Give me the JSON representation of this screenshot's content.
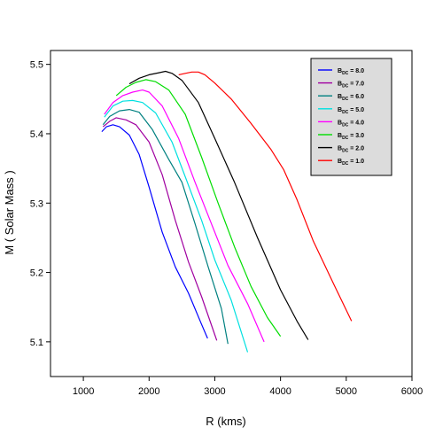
{
  "chart_data": {
    "type": "line",
    "xlabel": "R (kms)",
    "ylabel": "M ( Solar Mass )",
    "xlim": [
      500,
      6000
    ],
    "ylim": [
      5.05,
      5.52
    ],
    "x_ticks": [
      {
        "value": 1000,
        "label": "1000"
      },
      {
        "value": 2000,
        "label": "2000"
      },
      {
        "value": 3000,
        "label": "3000"
      },
      {
        "value": 4000,
        "label": "4000"
      },
      {
        "value": 5000,
        "label": "5000"
      },
      {
        "value": 6000,
        "label": "6000"
      }
    ],
    "y_ticks": [
      {
        "value": 5.1,
        "label": "5.1"
      },
      {
        "value": 5.2,
        "label": "5.2"
      },
      {
        "value": 5.3,
        "label": "5.3"
      },
      {
        "value": 5.4,
        "label": "5.4"
      },
      {
        "value": 5.5,
        "label": "5.5"
      }
    ],
    "legend_position": "top-right",
    "grid": false,
    "series": [
      {
        "name": "8.0",
        "color": "#0000ff",
        "x": [
          1280,
          1350,
          1450,
          1550,
          1700,
          1850,
          2000,
          2200,
          2400,
          2600,
          2800,
          2890
        ],
        "y": [
          5.403,
          5.41,
          5.413,
          5.41,
          5.398,
          5.37,
          5.323,
          5.258,
          5.208,
          5.17,
          5.125,
          5.105
        ]
      },
      {
        "name": "7.0",
        "color": "#a000a0",
        "x": [
          1300,
          1400,
          1500,
          1650,
          1800,
          2000,
          2200,
          2400,
          2600,
          2800,
          3000,
          3030
        ],
        "y": [
          5.41,
          5.418,
          5.423,
          5.42,
          5.413,
          5.388,
          5.341,
          5.275,
          5.215,
          5.165,
          5.11,
          5.102
        ]
      },
      {
        "name": "6.0",
        "color": "#008080",
        "x": [
          1300,
          1400,
          1550,
          1700,
          1850,
          2050,
          2300,
          2500,
          2700,
          2900,
          3100,
          3200
        ],
        "y": [
          5.413,
          5.425,
          5.433,
          5.435,
          5.431,
          5.406,
          5.363,
          5.33,
          5.27,
          5.208,
          5.148,
          5.097
        ]
      },
      {
        "name": "5.0",
        "color": "#00e0e0",
        "x": [
          1320,
          1450,
          1600,
          1750,
          1900,
          2100,
          2350,
          2550,
          2800,
          3000,
          3250,
          3500
        ],
        "y": [
          5.424,
          5.44,
          5.447,
          5.448,
          5.445,
          5.43,
          5.388,
          5.338,
          5.275,
          5.218,
          5.16,
          5.085
        ]
      },
      {
        "name": "4.0",
        "color": "#ff00ff",
        "x": [
          1320,
          1450,
          1600,
          1750,
          1900,
          2000,
          2200,
          2450,
          2700,
          2950,
          3200,
          3500,
          3750
        ],
        "y": [
          5.428,
          5.445,
          5.455,
          5.46,
          5.463,
          5.46,
          5.44,
          5.393,
          5.33,
          5.27,
          5.21,
          5.155,
          5.1
        ]
      },
      {
        "name": "3.0",
        "color": "#00dd00",
        "x": [
          1500,
          1650,
          1800,
          1950,
          2100,
          2300,
          2550,
          2800,
          3050,
          3300,
          3550,
          3800,
          4000
        ],
        "y": [
          5.455,
          5.467,
          5.474,
          5.478,
          5.475,
          5.463,
          5.428,
          5.366,
          5.3,
          5.237,
          5.18,
          5.135,
          5.108
        ]
      },
      {
        "name": "2.0",
        "color": "#000000",
        "x": [
          1700,
          1850,
          2000,
          2150,
          2250,
          2350,
          2500,
          2750,
          3000,
          3300,
          3650,
          4000,
          4250,
          4420
        ],
        "y": [
          5.472,
          5.48,
          5.485,
          5.488,
          5.49,
          5.487,
          5.477,
          5.445,
          5.393,
          5.33,
          5.25,
          5.175,
          5.13,
          5.103
        ]
      },
      {
        "name": "1.0",
        "color": "#ff0000",
        "x": [
          2450,
          2550,
          2650,
          2750,
          2850,
          3000,
          3250,
          3550,
          3850,
          4050,
          4250,
          4500,
          4800,
          5080
        ],
        "y": [
          5.485,
          5.487,
          5.489,
          5.489,
          5.485,
          5.473,
          5.45,
          5.415,
          5.378,
          5.348,
          5.305,
          5.245,
          5.185,
          5.13
        ]
      }
    ]
  },
  "legend": {
    "label_prefix": "B",
    "label_subscript": "DC",
    "label_separator": " = "
  }
}
